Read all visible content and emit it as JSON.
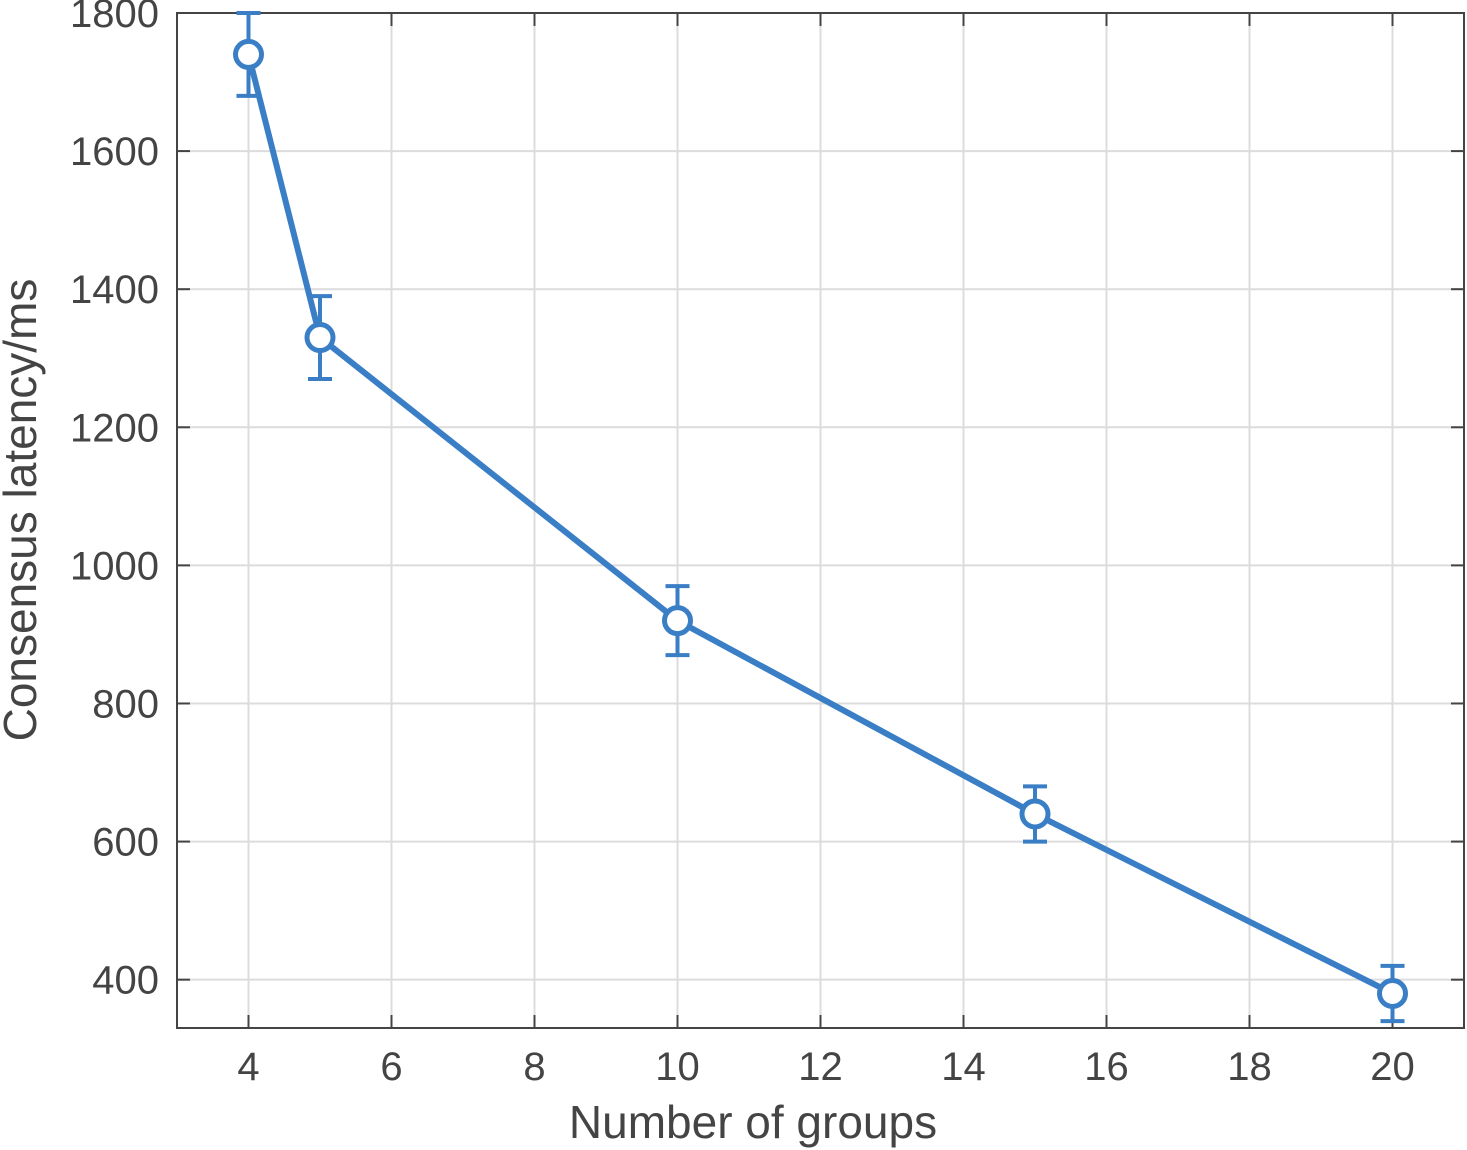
{
  "chart_data": {
    "type": "line",
    "xlabel": "Number of groups",
    "ylabel": "Consensus latency/ms",
    "xlim": [
      3,
      21
    ],
    "ylim": [
      330,
      1800
    ],
    "x_ticks": [
      4,
      6,
      8,
      10,
      12,
      14,
      16,
      18,
      20
    ],
    "y_ticks": [
      400,
      600,
      800,
      1000,
      1200,
      1400,
      1600,
      1800
    ],
    "grid": true,
    "series": [
      {
        "color": "#3a7ec6",
        "marker": "circle",
        "x": [
          4,
          5,
          10,
          15,
          20
        ],
        "y": [
          1740,
          1330,
          920,
          640,
          380
        ],
        "err_low": [
          1680,
          1270,
          870,
          600,
          340
        ],
        "err_high": [
          1800,
          1390,
          970,
          680,
          420
        ]
      }
    ]
  }
}
